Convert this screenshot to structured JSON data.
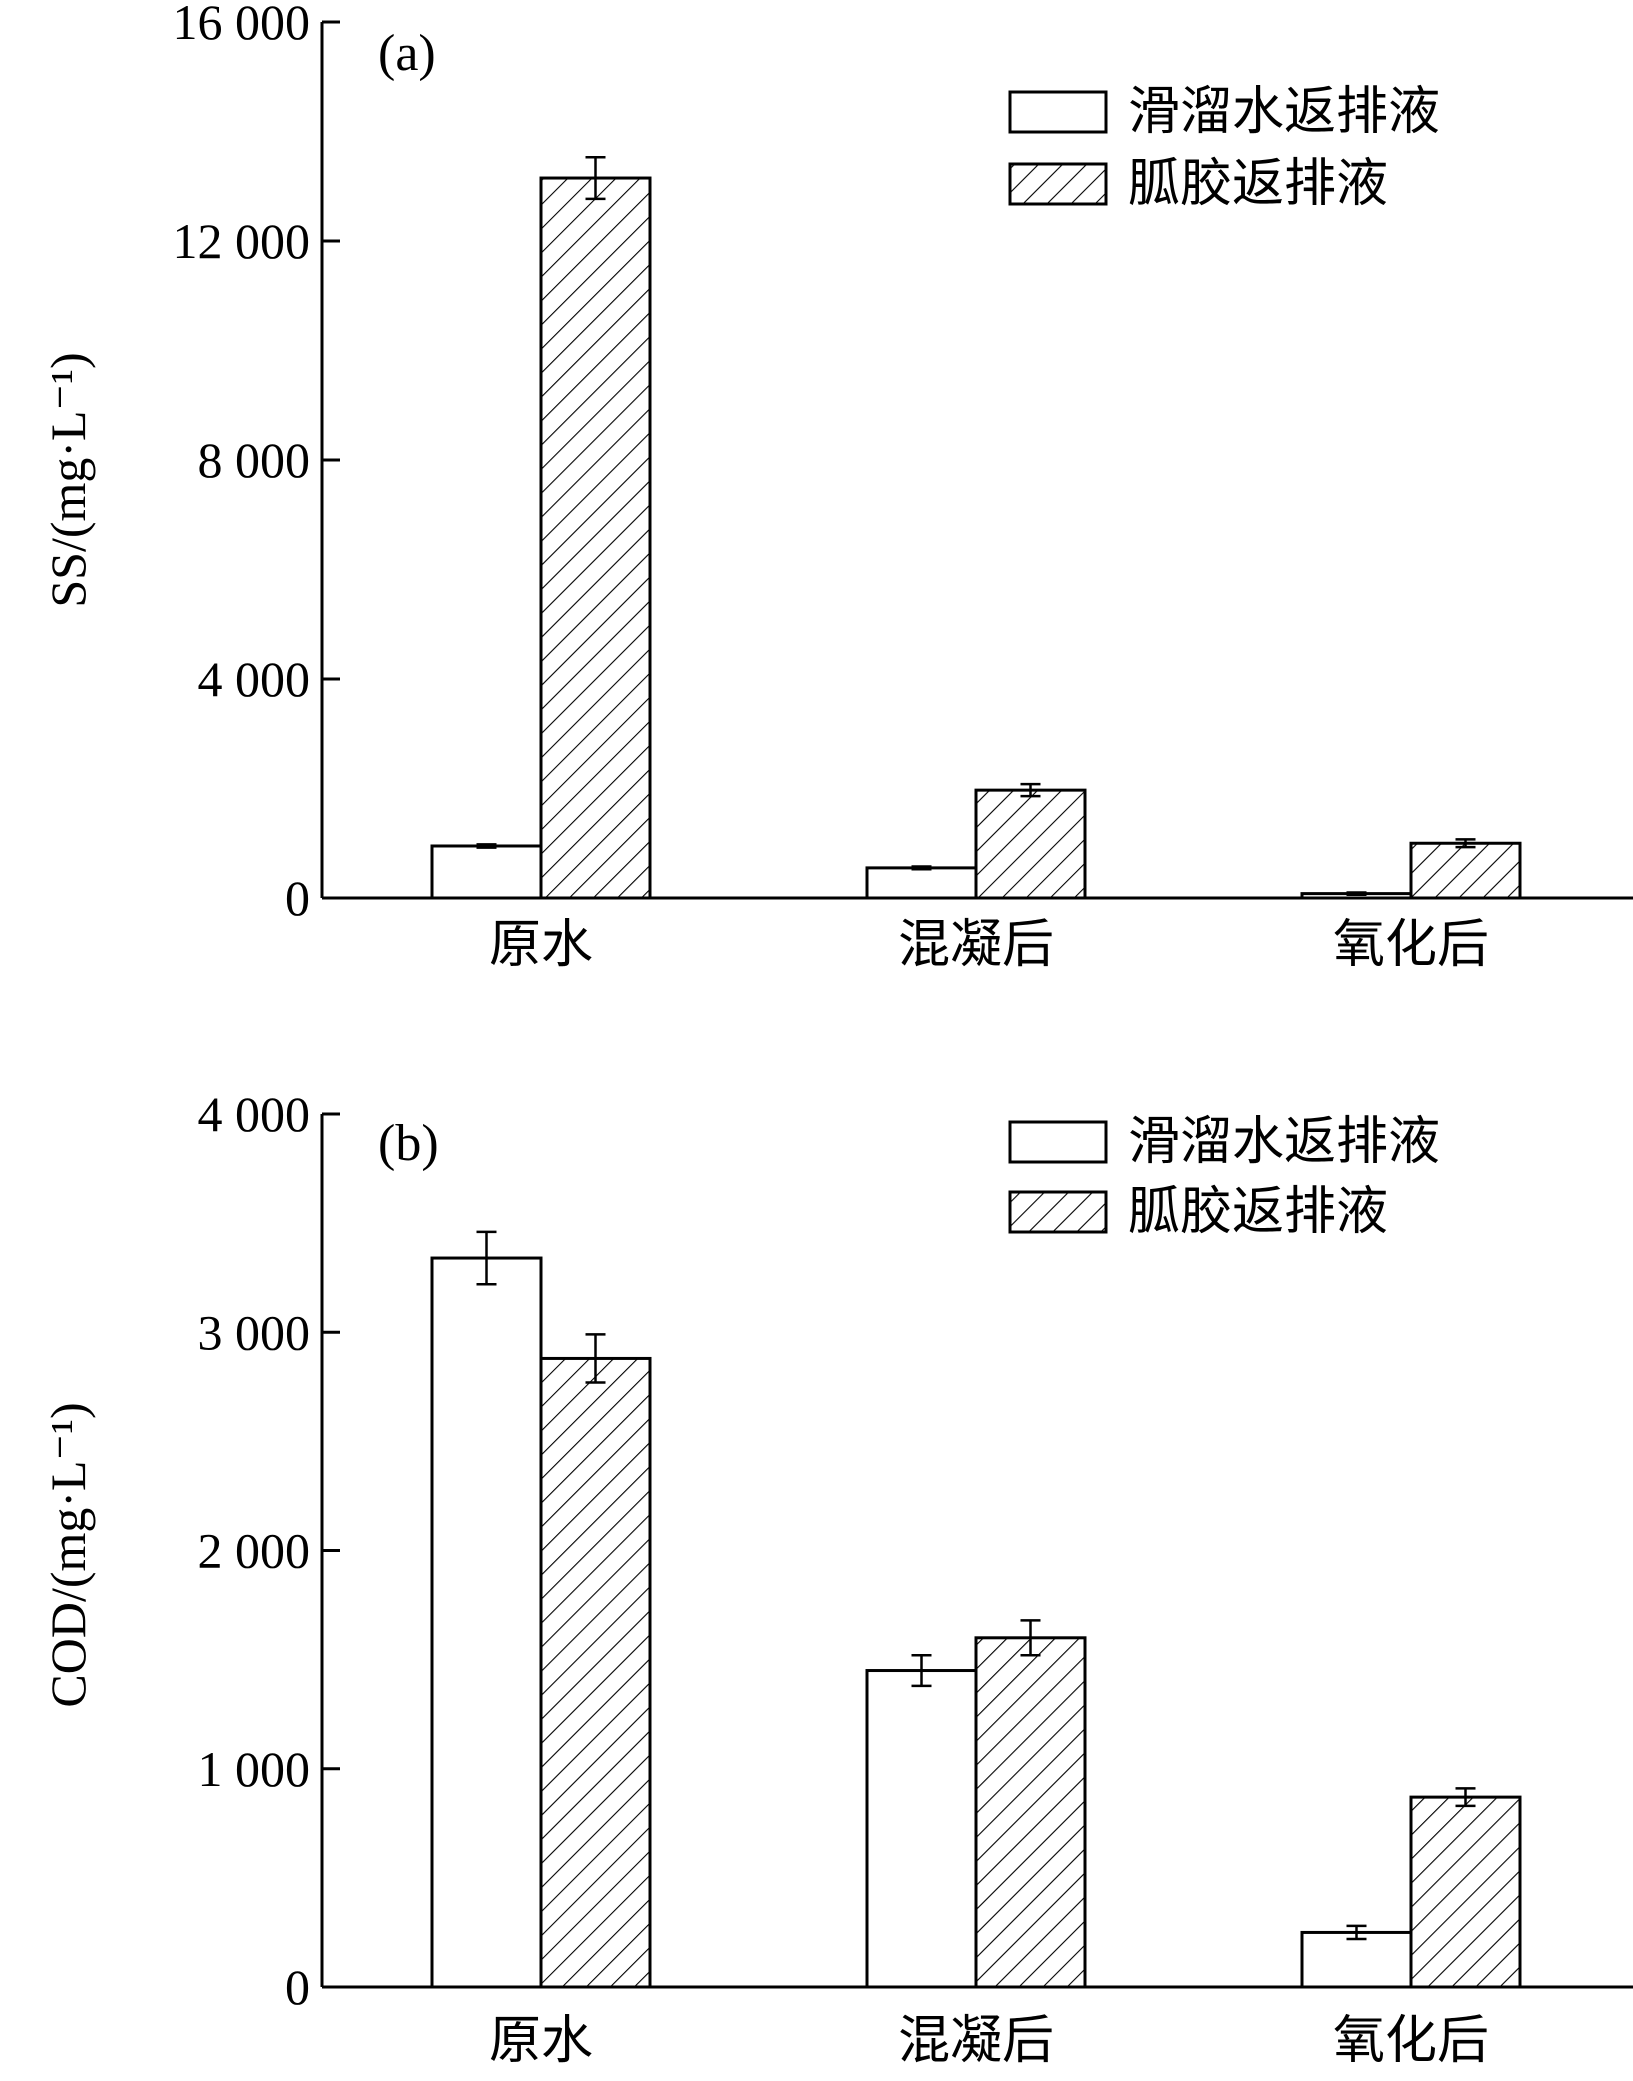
{
  "chart_data": [
    {
      "type": "bar",
      "panel": "(a)",
      "ylabel": "SS/(mg·L⁻¹)",
      "ylim": [
        0,
        16000
      ],
      "yticks": [
        0,
        4000,
        8000,
        12000,
        16000
      ],
      "ytick_labels": [
        "0",
        "4 000",
        "8 000",
        "12 000",
        "16 000"
      ],
      "categories": [
        "原水",
        "混凝后",
        "氧化后"
      ],
      "legend_position": "top-right",
      "series": [
        {
          "name": "滑溜水返排液",
          "fill": "open",
          "values": [
            950,
            550,
            80
          ],
          "errors": [
            30,
            25,
            20
          ]
        },
        {
          "name": "胍胶返排液",
          "fill": "hatched",
          "values": [
            13150,
            1970,
            1000
          ],
          "errors": [
            380,
            110,
            70
          ]
        }
      ]
    },
    {
      "type": "bar",
      "panel": "(b)",
      "ylabel": "COD/(mg·L⁻¹)",
      "ylim": [
        0,
        4000
      ],
      "yticks": [
        0,
        1000,
        2000,
        3000,
        4000
      ],
      "ytick_labels": [
        "0",
        "1 000",
        "2 000",
        "3 000",
        "4 000"
      ],
      "categories": [
        "原水",
        "混凝后",
        "氧化后"
      ],
      "legend_position": "top-right",
      "series": [
        {
          "name": "滑溜水返排液",
          "fill": "open",
          "values": [
            3340,
            1450,
            250
          ],
          "errors": [
            120,
            70,
            30
          ]
        },
        {
          "name": "胍胶返排液",
          "fill": "hatched",
          "values": [
            2880,
            1600,
            870
          ],
          "errors": [
            110,
            80,
            40
          ]
        }
      ]
    }
  ],
  "colors": {
    "line": "#000000",
    "background": "#ffffff"
  }
}
